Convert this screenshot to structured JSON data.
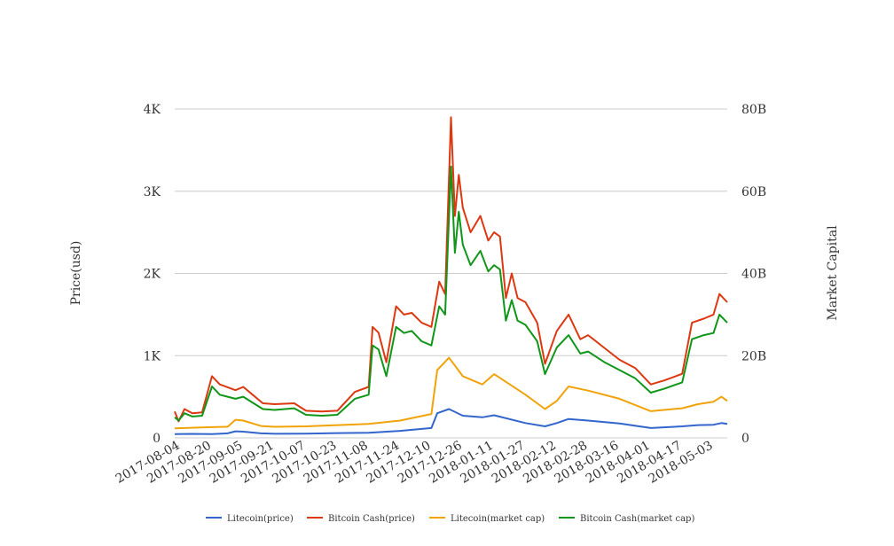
{
  "chart_data": {
    "type": "line",
    "title": "",
    "x_tick_labels": [
      "2017-08-04",
      "2017-08-20",
      "2017-09-05",
      "2017-09-21",
      "2017-10-07",
      "2017-10-23",
      "2017-11-08",
      "2017-11-24",
      "2017-12-10",
      "2017-12-26",
      "2018-01-11",
      "2018-01-27",
      "2018-02-12",
      "2018-02-28",
      "2018-03-16",
      "2018-04-01",
      "2018-04-17",
      "2018-05-03"
    ],
    "x_range": [
      "2017-08-01",
      "2018-05-10"
    ],
    "y_left": {
      "label": "Price(usd)",
      "range": [
        0,
        4000
      ],
      "ticks": [
        0,
        1000,
        2000,
        3000,
        4000
      ],
      "tick_labels": [
        "0",
        "1K",
        "2K",
        "3K",
        "4K"
      ]
    },
    "y_right": {
      "label": "Market Capital",
      "range": [
        0,
        80000000000
      ],
      "ticks": [
        0,
        20000000000,
        40000000000,
        60000000000,
        80000000000
      ],
      "tick_labels": [
        "0",
        "20B",
        "40B",
        "60B",
        "80B"
      ]
    },
    "grid": true,
    "legend_position": "bottom",
    "series": [
      {
        "name": "Litecoin(price)",
        "axis": "left",
        "color": "#3366cc",
        "points": [
          [
            "2017-08-01",
            45
          ],
          [
            "2017-08-10",
            48
          ],
          [
            "2017-08-20",
            45
          ],
          [
            "2017-08-28",
            55
          ],
          [
            "2017-09-01",
            80
          ],
          [
            "2017-09-05",
            75
          ],
          [
            "2017-09-14",
            55
          ],
          [
            "2017-09-21",
            50
          ],
          [
            "2017-10-07",
            52
          ],
          [
            "2017-10-23",
            58
          ],
          [
            "2017-11-08",
            62
          ],
          [
            "2017-11-24",
            85
          ],
          [
            "2017-12-10",
            120
          ],
          [
            "2017-12-13",
            300
          ],
          [
            "2017-12-19",
            350
          ],
          [
            "2017-12-26",
            270
          ],
          [
            "2018-01-05",
            250
          ],
          [
            "2018-01-11",
            275
          ],
          [
            "2018-01-27",
            180
          ],
          [
            "2018-02-06",
            140
          ],
          [
            "2018-02-12",
            180
          ],
          [
            "2018-02-18",
            230
          ],
          [
            "2018-02-28",
            210
          ],
          [
            "2018-03-16",
            175
          ],
          [
            "2018-04-01",
            120
          ],
          [
            "2018-04-17",
            140
          ],
          [
            "2018-04-25",
            155
          ],
          [
            "2018-05-03",
            160
          ],
          [
            "2018-05-07",
            180
          ],
          [
            "2018-05-10",
            170
          ]
        ]
      },
      {
        "name": "Bitcoin Cash(price)",
        "axis": "left",
        "color": "#dc3912",
        "points": [
          [
            "2017-08-01",
            320
          ],
          [
            "2017-08-03",
            200
          ],
          [
            "2017-08-06",
            350
          ],
          [
            "2017-08-10",
            300
          ],
          [
            "2017-08-15",
            310
          ],
          [
            "2017-08-20",
            750
          ],
          [
            "2017-08-24",
            650
          ],
          [
            "2017-09-01",
            580
          ],
          [
            "2017-09-05",
            620
          ],
          [
            "2017-09-10",
            520
          ],
          [
            "2017-09-15",
            420
          ],
          [
            "2017-09-21",
            410
          ],
          [
            "2017-10-01",
            420
          ],
          [
            "2017-10-07",
            330
          ],
          [
            "2017-10-15",
            320
          ],
          [
            "2017-10-23",
            330
          ],
          [
            "2017-11-01",
            560
          ],
          [
            "2017-11-08",
            620
          ],
          [
            "2017-11-10",
            1350
          ],
          [
            "2017-11-13",
            1280
          ],
          [
            "2017-11-17",
            920
          ],
          [
            "2017-11-22",
            1600
          ],
          [
            "2017-11-26",
            1500
          ],
          [
            "2017-11-30",
            1520
          ],
          [
            "2017-12-05",
            1400
          ],
          [
            "2017-12-10",
            1350
          ],
          [
            "2017-12-14",
            1900
          ],
          [
            "2017-12-17",
            1750
          ],
          [
            "2017-12-20",
            3900
          ],
          [
            "2017-12-22",
            2700
          ],
          [
            "2017-12-24",
            3200
          ],
          [
            "2017-12-26",
            2800
          ],
          [
            "2017-12-30",
            2500
          ],
          [
            "2018-01-04",
            2700
          ],
          [
            "2018-01-08",
            2400
          ],
          [
            "2018-01-11",
            2500
          ],
          [
            "2018-01-14",
            2450
          ],
          [
            "2018-01-17",
            1700
          ],
          [
            "2018-01-20",
            2000
          ],
          [
            "2018-01-23",
            1700
          ],
          [
            "2018-01-27",
            1650
          ],
          [
            "2018-02-02",
            1400
          ],
          [
            "2018-02-06",
            900
          ],
          [
            "2018-02-12",
            1300
          ],
          [
            "2018-02-18",
            1500
          ],
          [
            "2018-02-24",
            1200
          ],
          [
            "2018-02-28",
            1250
          ],
          [
            "2018-03-08",
            1100
          ],
          [
            "2018-03-16",
            950
          ],
          [
            "2018-03-24",
            850
          ],
          [
            "2018-04-01",
            650
          ],
          [
            "2018-04-08",
            700
          ],
          [
            "2018-04-17",
            780
          ],
          [
            "2018-04-22",
            1400
          ],
          [
            "2018-04-28",
            1450
          ],
          [
            "2018-05-03",
            1500
          ],
          [
            "2018-05-06",
            1750
          ],
          [
            "2018-05-10",
            1650
          ]
        ]
      },
      {
        "name": "Litecoin(market cap)",
        "axis": "right",
        "color": "#f0a30a",
        "points": [
          [
            "2017-08-01",
            2300000000
          ],
          [
            "2017-08-20",
            2600000000
          ],
          [
            "2017-08-28",
            2700000000
          ],
          [
            "2017-09-01",
            4400000000
          ],
          [
            "2017-09-05",
            4200000000
          ],
          [
            "2017-09-14",
            2900000000
          ],
          [
            "2017-09-21",
            2700000000
          ],
          [
            "2017-10-07",
            2800000000
          ],
          [
            "2017-10-23",
            3100000000
          ],
          [
            "2017-11-08",
            3400000000
          ],
          [
            "2017-11-24",
            4200000000
          ],
          [
            "2017-12-10",
            5800000000
          ],
          [
            "2017-12-13",
            16500000000
          ],
          [
            "2017-12-19",
            19500000000
          ],
          [
            "2017-12-26",
            15000000000
          ],
          [
            "2018-01-05",
            13000000000
          ],
          [
            "2018-01-11",
            15500000000
          ],
          [
            "2018-01-27",
            10500000000
          ],
          [
            "2018-02-06",
            7000000000
          ],
          [
            "2018-02-12",
            9000000000
          ],
          [
            "2018-02-18",
            12500000000
          ],
          [
            "2018-02-28",
            11500000000
          ],
          [
            "2018-03-16",
            9500000000
          ],
          [
            "2018-04-01",
            6500000000
          ],
          [
            "2018-04-17",
            7200000000
          ],
          [
            "2018-04-25",
            8200000000
          ],
          [
            "2018-05-03",
            8800000000
          ],
          [
            "2018-05-07",
            10000000000
          ],
          [
            "2018-05-10",
            9000000000
          ]
        ]
      },
      {
        "name": "Bitcoin Cash(market cap)",
        "axis": "right",
        "color": "#109618",
        "points": [
          [
            "2017-08-01",
            5000000000
          ],
          [
            "2017-08-03",
            4200000000
          ],
          [
            "2017-08-06",
            6000000000
          ],
          [
            "2017-08-10",
            5200000000
          ],
          [
            "2017-08-15",
            5400000000
          ],
          [
            "2017-08-20",
            12500000000
          ],
          [
            "2017-08-24",
            10500000000
          ],
          [
            "2017-09-01",
            9500000000
          ],
          [
            "2017-09-05",
            10000000000
          ],
          [
            "2017-09-10",
            8500000000
          ],
          [
            "2017-09-15",
            7000000000
          ],
          [
            "2017-09-21",
            6800000000
          ],
          [
            "2017-10-01",
            7200000000
          ],
          [
            "2017-10-07",
            5600000000
          ],
          [
            "2017-10-15",
            5400000000
          ],
          [
            "2017-10-23",
            5600000000
          ],
          [
            "2017-11-01",
            9500000000
          ],
          [
            "2017-11-08",
            10500000000
          ],
          [
            "2017-11-10",
            22500000000
          ],
          [
            "2017-11-13",
            21500000000
          ],
          [
            "2017-11-17",
            15000000000
          ],
          [
            "2017-11-22",
            27000000000
          ],
          [
            "2017-11-26",
            25500000000
          ],
          [
            "2017-11-30",
            26000000000
          ],
          [
            "2017-12-05",
            23500000000
          ],
          [
            "2017-12-10",
            22500000000
          ],
          [
            "2017-12-14",
            32000000000
          ],
          [
            "2017-12-17",
            30000000000
          ],
          [
            "2017-12-20",
            66000000000
          ],
          [
            "2017-12-22",
            45000000000
          ],
          [
            "2017-12-24",
            55000000000
          ],
          [
            "2017-12-26",
            47000000000
          ],
          [
            "2017-12-30",
            42000000000
          ],
          [
            "2018-01-04",
            45500000000
          ],
          [
            "2018-01-08",
            40500000000
          ],
          [
            "2018-01-11",
            42000000000
          ],
          [
            "2018-01-14",
            41000000000
          ],
          [
            "2018-01-17",
            28500000000
          ],
          [
            "2018-01-20",
            33500000000
          ],
          [
            "2018-01-23",
            28500000000
          ],
          [
            "2018-01-27",
            27500000000
          ],
          [
            "2018-02-02",
            23500000000
          ],
          [
            "2018-02-06",
            15500000000
          ],
          [
            "2018-02-12",
            22000000000
          ],
          [
            "2018-02-18",
            25000000000
          ],
          [
            "2018-02-24",
            20500000000
          ],
          [
            "2018-02-28",
            21000000000
          ],
          [
            "2018-03-08",
            18500000000
          ],
          [
            "2018-03-16",
            16500000000
          ],
          [
            "2018-03-24",
            14500000000
          ],
          [
            "2018-04-01",
            11000000000
          ],
          [
            "2018-04-08",
            12000000000
          ],
          [
            "2018-04-17",
            13500000000
          ],
          [
            "2018-04-22",
            24000000000
          ],
          [
            "2018-04-28",
            25000000000
          ],
          [
            "2018-05-03",
            25500000000
          ],
          [
            "2018-05-06",
            30000000000
          ],
          [
            "2018-05-10",
            28000000000
          ]
        ]
      }
    ]
  }
}
